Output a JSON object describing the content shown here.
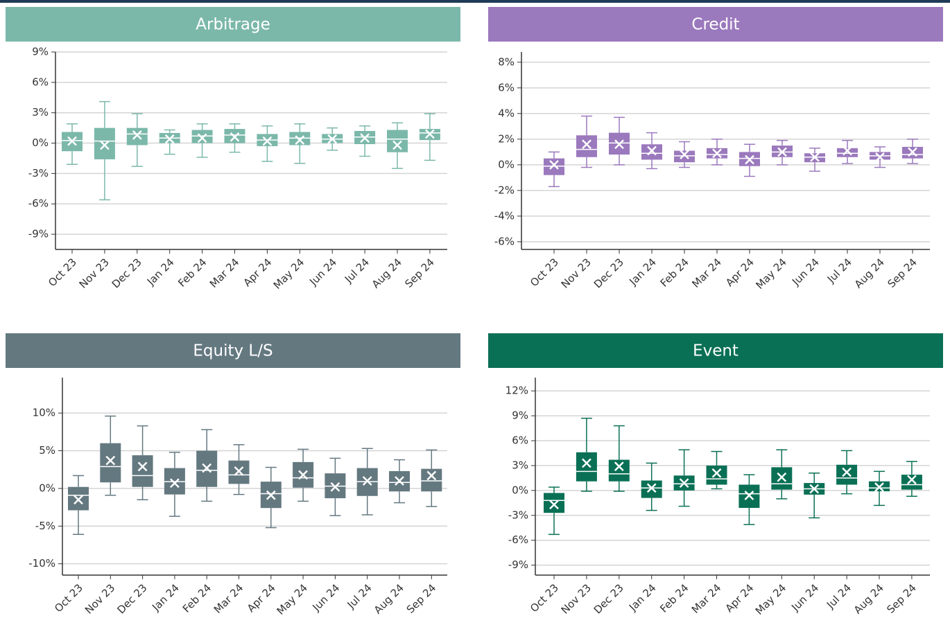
{
  "chart_data": [
    {
      "type": "box",
      "title": "Arbitrage",
      "color": "#7bb8aa",
      "categories": [
        "Oct 23",
        "Nov 23",
        "Dec 23",
        "Jan 24",
        "Feb 24",
        "Mar 24",
        "Apr 24",
        "May 24",
        "Jun 24",
        "Jul 24",
        "Aug 24",
        "Sep 24"
      ],
      "series": [
        {
          "max": [
            1.9,
            4.1,
            2.9,
            1.3,
            1.9,
            1.9,
            1.7,
            1.9,
            1.5,
            1.7,
            2.0,
            2.9
          ],
          "q3": [
            1.1,
            1.5,
            1.5,
            1.0,
            1.3,
            1.4,
            0.9,
            1.1,
            0.9,
            1.2,
            1.3,
            1.4
          ],
          "median": [
            0.25,
            0.2,
            0.9,
            0.5,
            0.7,
            0.8,
            0.3,
            0.5,
            0.4,
            0.6,
            0.4,
            1.0
          ],
          "q1": [
            -0.8,
            -1.6,
            -0.2,
            0,
            0,
            0,
            -0.3,
            -0.2,
            0,
            -0.1,
            -0.9,
            0.3
          ],
          "min": [
            -2.1,
            -5.6,
            -2.3,
            -1.1,
            -1.4,
            -0.9,
            -1.8,
            -2.0,
            -0.7,
            -1.3,
            -2.5,
            -1.7
          ],
          "mean": [
            0.2,
            -0.2,
            0.8,
            0.4,
            0.5,
            0.6,
            0.2,
            0.3,
            0.4,
            0.5,
            -0.2,
            0.9
          ]
        }
      ],
      "ylim": [
        -10.5,
        9
      ],
      "yticks": [
        {
          "value": 9,
          "label": "9%"
        },
        {
          "value": 6,
          "label": "6%"
        },
        {
          "value": 3,
          "label": "3%"
        },
        {
          "value": 0,
          "label": "0%"
        },
        {
          "value": -3,
          "label": "-3%"
        },
        {
          "value": -6,
          "label": "-6%"
        },
        {
          "value": -9,
          "label": "-9%"
        }
      ],
      "grid": true
    },
    {
      "type": "box",
      "title": "Credit",
      "color": "#9b79bd",
      "categories": [
        "Oct 23",
        "Nov 23",
        "Dec 23",
        "Jan 24",
        "Feb 24",
        "Mar 24",
        "Apr 24",
        "May 24",
        "Jun 24",
        "Jul 24",
        "Aug 24",
        "Sep 24"
      ],
      "series": [
        {
          "max": [
            1.0,
            3.8,
            3.7,
            2.5,
            1.8,
            2.0,
            1.6,
            1.9,
            1.3,
            1.9,
            1.4,
            2.0
          ],
          "q3": [
            0.5,
            2.3,
            2.5,
            1.6,
            1.1,
            1.3,
            1.0,
            1.5,
            0.9,
            1.3,
            1.0,
            1.4
          ],
          "median": [
            -0.1,
            1.2,
            1.7,
            0.9,
            0.7,
            0.8,
            0.5,
            1.0,
            0.6,
            0.9,
            0.7,
            0.8
          ],
          "q1": [
            -0.8,
            0.6,
            0.8,
            0.4,
            0.2,
            0.5,
            -0.1,
            0.6,
            0.2,
            0.6,
            0.4,
            0.5
          ],
          "min": [
            -1.7,
            -0.2,
            0,
            -0.3,
            -0.2,
            0,
            -0.9,
            0,
            -0.5,
            0.1,
            -0.2,
            0.1
          ],
          "mean": [
            0,
            1.6,
            1.6,
            1.1,
            0.8,
            0.9,
            0.4,
            1.0,
            0.6,
            1.1,
            0.6,
            1.0
          ]
        }
      ],
      "ylim": [
        -6.6,
        8.8
      ],
      "yticks": [
        {
          "value": 8,
          "label": "8%"
        },
        {
          "value": 6,
          "label": "6%"
        },
        {
          "value": 4,
          "label": "4%"
        },
        {
          "value": 2,
          "label": "2%"
        },
        {
          "value": 0,
          "label": "0%"
        },
        {
          "value": -2,
          "label": "-2%"
        },
        {
          "value": -4,
          "label": "-4%"
        },
        {
          "value": -6,
          "label": "-6%"
        }
      ],
      "grid": true
    },
    {
      "type": "box",
      "title": "Equity L/S",
      "color": "#647880",
      "categories": [
        "Oct 23",
        "Nov 23",
        "Dec 23",
        "Jan 24",
        "Feb 24",
        "Mar 24",
        "Apr 24",
        "May 24",
        "Jun 24",
        "Jul 24",
        "Aug 24",
        "Sep 24"
      ],
      "series": [
        {
          "max": [
            1.7,
            9.6,
            8.3,
            4.8,
            7.8,
            5.8,
            2.8,
            5.2,
            4.0,
            5.3,
            3.8,
            5.1
          ],
          "q3": [
            0.2,
            6.0,
            4.4,
            2.7,
            5.0,
            3.7,
            0.9,
            3.5,
            2.0,
            2.7,
            2.3,
            2.6
          ],
          "median": [
            -0.9,
            2.9,
            1.7,
            0.9,
            2.4,
            1.8,
            -0.7,
            1.4,
            0.3,
            0.9,
            0.8,
            1.0
          ],
          "q1": [
            -2.9,
            0.8,
            0.2,
            -0.8,
            0.2,
            0.6,
            -2.6,
            0.1,
            -1.3,
            -1.0,
            -0.4,
            -0.4
          ],
          "min": [
            -6.1,
            -0.9,
            -1.5,
            -3.7,
            -1.7,
            -0.8,
            -5.2,
            -1.7,
            -3.6,
            -3.5,
            -1.9,
            -2.4
          ],
          "mean": [
            -1.5,
            3.7,
            2.9,
            0.7,
            2.7,
            2.3,
            -0.9,
            1.8,
            0.2,
            1.0,
            1.0,
            1.7
          ]
        }
      ],
      "ylim": [
        -11.5,
        14.7
      ],
      "yticks": [
        {
          "value": 10,
          "label": "10%"
        },
        {
          "value": 5,
          "label": "5%"
        },
        {
          "value": 0,
          "label": "0%"
        },
        {
          "value": -5,
          "label": "-5%"
        },
        {
          "value": -10,
          "label": "-10%"
        }
      ],
      "grid": true
    },
    {
      "type": "box",
      "title": "Event",
      "color": "#0a7055",
      "categories": [
        "Oct 23",
        "Nov 23",
        "Dec 23",
        "Jan 24",
        "Feb 24",
        "Mar 24",
        "Apr 24",
        "May 24",
        "Jun 24",
        "Jul 24",
        "Aug 24",
        "Sep 24"
      ],
      "series": [
        {
          "max": [
            0.4,
            8.7,
            7.8,
            3.3,
            4.9,
            4.7,
            1.9,
            4.9,
            2.1,
            4.8,
            2.3,
            3.5
          ],
          "q3": [
            -0.3,
            4.6,
            3.7,
            1.2,
            1.8,
            3.0,
            0.7,
            2.8,
            0.9,
            3.1,
            1.1,
            1.9
          ],
          "median": [
            -1.2,
            2.3,
            2.0,
            0.3,
            0.8,
            1.4,
            -0.4,
            0.8,
            0.2,
            1.5,
            0.3,
            0.7
          ],
          "q1": [
            -2.7,
            1.1,
            1.1,
            -0.9,
            0,
            0.7,
            -2.1,
            0.1,
            -0.5,
            0.7,
            -0.1,
            0.1
          ],
          "min": [
            -5.3,
            -0.1,
            -0.1,
            -2.4,
            -1.9,
            0.2,
            -4.1,
            -1.0,
            -3.3,
            -0.4,
            -1.8,
            -0.7
          ],
          "mean": [
            -1.7,
            3.3,
            2.9,
            0.3,
            0.9,
            2.1,
            -0.6,
            1.6,
            0.2,
            2.2,
            0.4,
            1.3
          ]
        }
      ],
      "ylim": [
        -10.2,
        13.6
      ],
      "yticks": [
        {
          "value": 12,
          "label": "12%"
        },
        {
          "value": 9,
          "label": "9%"
        },
        {
          "value": 6,
          "label": "6%"
        },
        {
          "value": 3,
          "label": "3%"
        },
        {
          "value": 0,
          "label": "0%"
        },
        {
          "value": -3,
          "label": "-3%"
        },
        {
          "value": -6,
          "label": "-6%"
        },
        {
          "value": -9,
          "label": "-9%"
        }
      ],
      "grid": true
    }
  ]
}
